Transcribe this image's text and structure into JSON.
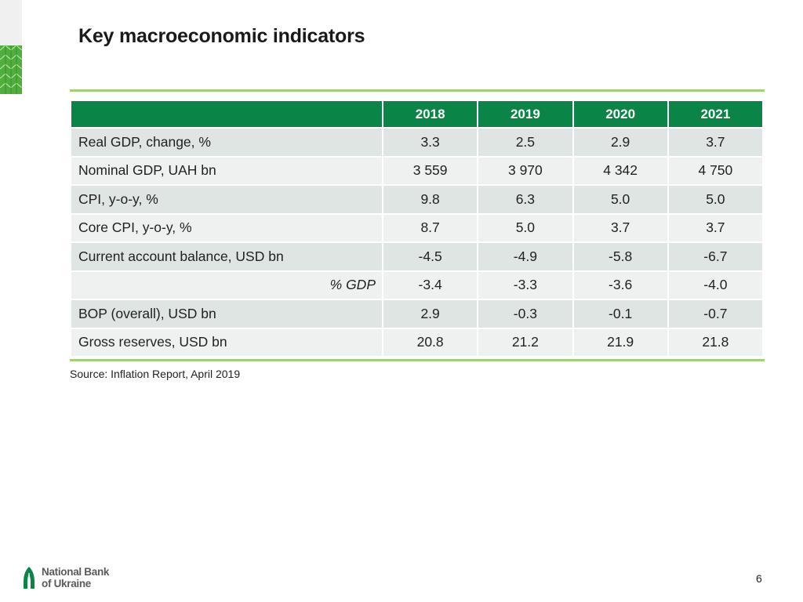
{
  "slide": {
    "title": "Key macroeconomic indicators",
    "source": "Source: Inflation Report, April 2019",
    "page_number": "6"
  },
  "table": {
    "columns": [
      "2018",
      "2019",
      "2020",
      "2021"
    ],
    "rows": [
      {
        "label": "Real GDP, change, %",
        "values": [
          "3.3",
          "2.5",
          "2.9",
          "3.7"
        ]
      },
      {
        "label": "Nominal GDP, UAH bn",
        "values": [
          "3 559",
          "3 970",
          "4 342",
          "4 750"
        ]
      },
      {
        "label": "CPI, y-o-y, %",
        "values": [
          "9.8",
          "6.3",
          "5.0",
          "5.0"
        ]
      },
      {
        "label": "Core CPI, y-o-y, %",
        "values": [
          "8.7",
          "5.0",
          "3.7",
          "3.7"
        ]
      },
      {
        "label": "Current account balance, USD bn",
        "values": [
          "-4.5",
          "-4.9",
          "-5.8",
          "-6.7"
        ]
      },
      {
        "label": "% GDP",
        "values": [
          "-3.4",
          "-3.3",
          "-3.6",
          "-4.0"
        ]
      },
      {
        "label": "BOP (overall), USD bn",
        "values": [
          "2.9",
          "-0.3",
          "-0.1",
          "-0.7"
        ]
      },
      {
        "label": "Gross reserves, USD bn",
        "values": [
          "20.8",
          "21.2",
          "21.9",
          "21.8"
        ]
      }
    ]
  },
  "logo": {
    "line1": "National Bank",
    "line2": "of Ukraine",
    "icon": "nbu-emblem-icon"
  },
  "colors": {
    "header_green": "#0a8447",
    "rule_green": "#a3cf79",
    "row_shade": "#dfe5e3",
    "row_alt_shade": "#eef1f0"
  }
}
